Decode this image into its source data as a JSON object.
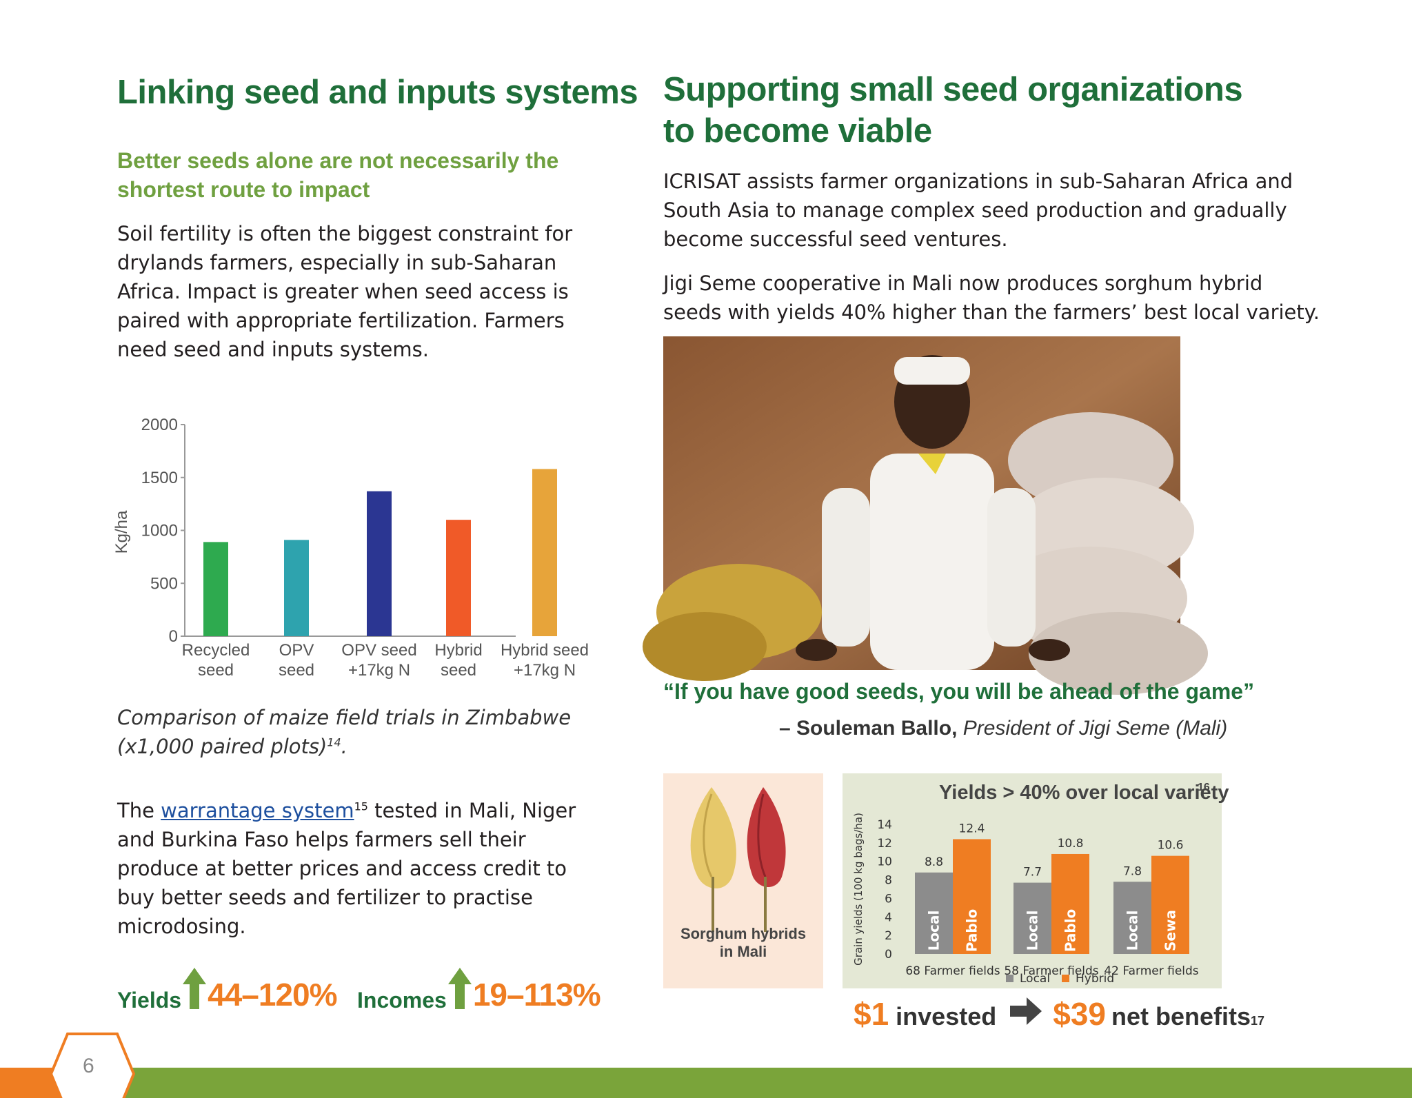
{
  "left": {
    "title": "Linking seed and inputs systems",
    "subtitle_line1": "Better seeds alone are not necessarily the",
    "subtitle_line2": "shortest route to impact",
    "para_lines": [
      "Soil fertility is often the biggest constraint for",
      "drylands farmers, especially in sub-Saharan",
      "Africa. Impact is greater when seed access is",
      "paired with appropriate fertilization. Farmers",
      "need seed and inputs systems."
    ],
    "caption_line1": "Comparison of maize field trials in Zimbabwe",
    "caption_line2": "(x1,000 paired plots)",
    "caption_sup": "14",
    "caption_end": ".",
    "warrantage": {
      "prefix": "The ",
      "link": "warrantage system",
      "sup": "15",
      "rest_line1": " tested in Mali, Niger",
      "lines": [
        "and Burkina Faso helps farmers sell their",
        "produce at better prices and access credit to",
        "buy better seeds and fertilizer to practise",
        "microdosing."
      ]
    },
    "stats": {
      "yields_label": "Yields",
      "yields_value": "44–120%",
      "incomes_label": "Incomes",
      "incomes_value": "19–113%"
    }
  },
  "right": {
    "title_line1": "Supporting small seed organizations",
    "title_line2": "to become viable",
    "para1_lines": [
      "ICRISAT assists farmer organizations in sub-Saharan Africa and",
      "South Asia to manage complex seed production and gradually",
      "become successful seed ventures."
    ],
    "para2_lines": [
      "Jigi Seme cooperative in Mali now produces sorghum hybrid",
      "seeds with yields 40% higher than the farmers’ best local variety."
    ],
    "quote": "“If you have good seeds, you will be ahead of the game”",
    "attrib_name": "– Souleman Ballo,",
    "attrib_role": "President of Jigi Seme (Mali)",
    "sorghum_caption_line1": "Sorghum hybrids",
    "sorghum_caption_line2": "in Mali",
    "invest": {
      "amount1": "$1",
      "text1": "invested",
      "amount2": "$39",
      "text2": "net benefits",
      "sup": "17"
    }
  },
  "page_number": "6",
  "colors": {
    "green_dark": "#1f6f3a",
    "green_light": "#6fa040",
    "orange": "#ef7d22",
    "footer_green": "#7aa43a"
  },
  "chart_data": [
    {
      "type": "bar",
      "title": "",
      "xlabel": "",
      "ylabel": "Kg/ha",
      "ylim": [
        0,
        2000
      ],
      "yticks": [
        0,
        500,
        1000,
        1500,
        2000
      ],
      "categories": [
        [
          "Recycled",
          "seed"
        ],
        [
          "OPV",
          "seed"
        ],
        [
          "OPV seed",
          "+17kg N"
        ],
        [
          "Hybrid",
          "seed"
        ],
        [
          "Hybrid seed",
          "+17kg N"
        ]
      ],
      "values": [
        890,
        910,
        1370,
        1100,
        1580
      ],
      "bar_colors": [
        "#2eaa4f",
        "#2ea3ae",
        "#2b3692",
        "#f05a28",
        "#e7a43a"
      ],
      "grid": false
    },
    {
      "type": "bar",
      "title": "Yields > 40% over local variety",
      "title_sup": "16",
      "ylabel": "Grain yields (100 kg bags/ha)",
      "ylim": [
        0,
        14
      ],
      "yticks": [
        0,
        2,
        4,
        6,
        8,
        10,
        12,
        14
      ],
      "categories": [
        "68 Farmer fields",
        "58 Farmer fields",
        "42 Farmer fields"
      ],
      "series": [
        {
          "name": "Local",
          "values": [
            8.8,
            7.7,
            7.8
          ],
          "bar_labels": [
            "Local",
            "Local",
            "Local"
          ],
          "color": "#8c8c8c"
        },
        {
          "name": "Hybrid",
          "values": [
            12.4,
            10.8,
            10.6
          ],
          "bar_labels": [
            "Pablo",
            "Pablo",
            "Sewa"
          ],
          "color": "#ef7d22"
        }
      ],
      "value_labels": [
        [
          "8.8",
          "7.7",
          "7.8"
        ],
        [
          "12.4",
          "10.8",
          "10.6"
        ]
      ],
      "legend": "bottom",
      "grid": false
    }
  ]
}
